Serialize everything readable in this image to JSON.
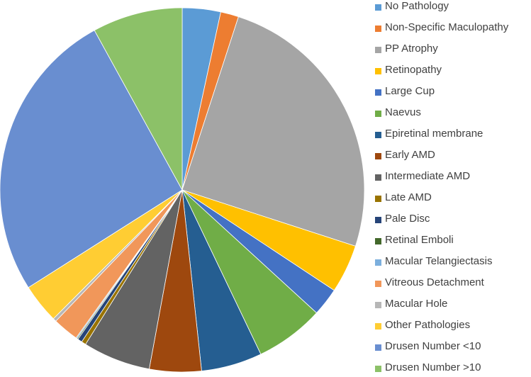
{
  "chart_data": {
    "type": "pie",
    "title": "",
    "legend_position": "right",
    "slices": [
      {
        "name": "No Pathology",
        "value": 3.4,
        "color": "#5B9BD5"
      },
      {
        "name": "Non-Specific Maculopathy",
        "value": 1.6,
        "color": "#ED7D31"
      },
      {
        "name": "PP Atrophy",
        "value": 25.0,
        "color": "#A5A5A5"
      },
      {
        "name": "Retinopathy",
        "value": 4.3,
        "color": "#FFC000"
      },
      {
        "name": "Large Cup",
        "value": 2.5,
        "color": "#4472C4"
      },
      {
        "name": "Naevus",
        "value": 6.1,
        "color": "#70AD47"
      },
      {
        "name": "Epiretinal membrane",
        "value": 5.4,
        "color": "#255E91"
      },
      {
        "name": "Early AMD",
        "value": 4.6,
        "color": "#9E480E"
      },
      {
        "name": "Intermediate AMD",
        "value": 6.0,
        "color": "#636363"
      },
      {
        "name": "Late AMD",
        "value": 0.4,
        "color": "#997300"
      },
      {
        "name": "Pale Disc",
        "value": 0.4,
        "color": "#264478"
      },
      {
        "name": "Retinal Emboli",
        "value": 0.1,
        "color": "#43682B"
      },
      {
        "name": "Macular Telangiectasis",
        "value": 0.1,
        "color": "#7CAFDD"
      },
      {
        "name": "Vitreous Detachment",
        "value": 2.3,
        "color": "#F1975A"
      },
      {
        "name": "Macular Hole",
        "value": 0.3,
        "color": "#B7B7B7"
      },
      {
        "name": "Other Pathologies",
        "value": 3.5,
        "color": "#FFCD33"
      },
      {
        "name": "Drusen Number <10",
        "value": 26.0,
        "color": "#698ED0"
      },
      {
        "name": "Drusen Number >10",
        "value": 8.0,
        "color": "#8CC168"
      }
    ]
  }
}
